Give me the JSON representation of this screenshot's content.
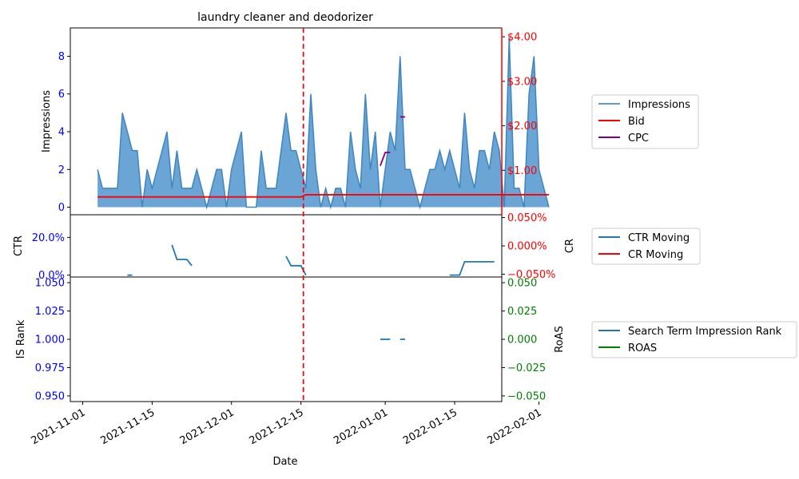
{
  "chart_data": {
    "type": "line",
    "title": "laundry cleaner and deodorizer",
    "xlabel": "Date",
    "x_ticks": [
      "2021-11-01",
      "2021-11-15",
      "2021-12-01",
      "2021-12-15",
      "2022-01-01",
      "2022-01-15",
      "2022-02-01"
    ],
    "x_range_days": [
      -2.5,
      84.5
    ],
    "event_marker_day": 44.5,
    "top_panel": {
      "ylabel_left": "Impressions",
      "y_ticks_left": [
        "0",
        "2",
        "4",
        "6",
        "8"
      ],
      "ylim_left": [
        -0.4,
        9.5
      ],
      "y_ticks_right": [
        "$1.00",
        "$2.00",
        "$3.00",
        "$4.00"
      ],
      "ylim_right": [
        0,
        4.2
      ],
      "legend": [
        "Impressions",
        "Bid",
        "CPC"
      ],
      "impressions": {
        "start_day": 3,
        "values": [
          2,
          1,
          1,
          1,
          1,
          5,
          4,
          3,
          3,
          0,
          2,
          1,
          2,
          3,
          4,
          1,
          3,
          1,
          1,
          1,
          2,
          1,
          0,
          1,
          2,
          2,
          0,
          2,
          3,
          4,
          0,
          0,
          0,
          3,
          1,
          1,
          1,
          3,
          5,
          3,
          3,
          2,
          1,
          6,
          2,
          0,
          1,
          0,
          1,
          1,
          0,
          4,
          2,
          1,
          6,
          2,
          4,
          0,
          2,
          4,
          3,
          8,
          2,
          2,
          1,
          0,
          1,
          2,
          2,
          3,
          2,
          3,
          2,
          1,
          5,
          2,
          1,
          3,
          3,
          2,
          4,
          3,
          0,
          9,
          1,
          1,
          0,
          6,
          8,
          2,
          1,
          0
        ]
      },
      "bid": {
        "segments": [
          {
            "from_day": 3,
            "to_day": 44,
            "value": 0.4
          },
          {
            "from_day": 45,
            "to_day": 94,
            "value": 0.45
          }
        ]
      },
      "cpc": {
        "segments": [
          {
            "days": [
              60,
              61,
              62
            ],
            "values": [
              1.1,
              1.4,
              1.4
            ]
          },
          {
            "days": [
              64,
              65
            ],
            "values": [
              2.2,
              2.2
            ]
          }
        ]
      }
    },
    "middle_panel": {
      "ylabel_left": "CTR",
      "y_ticks_left": [
        "0.0%",
        "20.0%"
      ],
      "ylim_left": [
        -0.01,
        0.32
      ],
      "ylabel_right": "CR",
      "y_ticks_right": [
        "−0.050%",
        "0.000%",
        "0.050%"
      ],
      "ylim_right": [
        -0.055,
        0.055
      ],
      "legend": [
        "CTR Moving",
        "CR Moving"
      ],
      "ctr_moving": {
        "segments": [
          {
            "days": [
              9,
              10
            ],
            "values": [
              0.0,
              0.0
            ]
          },
          {
            "days": [
              18,
              19,
              20,
              21,
              22
            ],
            "values": [
              0.16,
              0.083,
              0.083,
              0.083,
              0.05
            ]
          },
          {
            "days": [
              41,
              42,
              43,
              44,
              45
            ],
            "values": [
              0.1,
              0.05,
              0.05,
              0.05,
              0.0
            ]
          },
          {
            "days": [
              74,
              75,
              76,
              77,
              78,
              79,
              80,
              81,
              82,
              83
            ],
            "values": [
              0.0,
              0.0,
              0.0,
              0.071,
              0.071,
              0.071,
              0.071,
              0.071,
              0.071,
              0.071
            ]
          }
        ]
      }
    },
    "bottom_panel": {
      "ylabel_left": "IS Rank",
      "y_ticks_left": [
        "0.950",
        "0.975",
        "1.000",
        "1.025",
        "1.050"
      ],
      "ylim_left": [
        0.945,
        1.055
      ],
      "ylabel_right": "RoAS",
      "y_ticks_right": [
        "−0.050",
        "−0.025",
        "0.000",
        "0.025",
        "0.050"
      ],
      "ylim_right": [
        -0.055,
        0.055
      ],
      "legend": [
        "Search Term Impression Rank",
        "ROAS"
      ],
      "is_rank": {
        "segments": [
          {
            "days": [
              60,
              61,
              62
            ],
            "values": [
              1.0,
              1.0,
              1.0
            ]
          },
          {
            "days": [
              64,
              65
            ],
            "values": [
              1.0,
              1.0
            ]
          }
        ]
      }
    },
    "colors": {
      "impressions_fill": "#5b9bd0",
      "impressions_line": "#3f85bf",
      "bid": "#ff0000",
      "cpc": "#800080",
      "ctr": "#1f77b4",
      "cr": "#ff0000",
      "is_rank": "#1f77b4",
      "roas": "#008000",
      "left_tick_color": "#0000ff",
      "top_right_tick_color": "#ff0000",
      "mid_right_tick_color": "#ff0000",
      "bottom_right_tick_color": "#008000",
      "marker": "#ff0000"
    }
  }
}
